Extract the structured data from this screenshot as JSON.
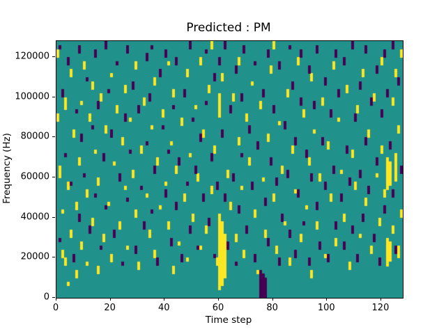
{
  "chart_data": {
    "type": "heatmap",
    "title": "Predicted : PM",
    "xlabel": "Time step",
    "ylabel": "Frequency (Hz)",
    "x_range": [
      0,
      128
    ],
    "y_range": [
      0,
      128000
    ],
    "x_ticks": [
      0,
      20,
      40,
      60,
      80,
      100,
      120
    ],
    "y_ticks": [
      0,
      20000,
      40000,
      60000,
      80000,
      100000,
      120000
    ],
    "grid": {
      "cols": 128,
      "rows": 64,
      "hz_per_row": 2000
    },
    "colors": {
      "background": "#21918c",
      "high": "#fde725",
      "low": "#440154",
      "figure": "#ffffff",
      "axis": "#000000"
    },
    "legend": "none",
    "yellow_runs": [
      [
        0,
        60,
        61
      ],
      [
        0,
        44,
        45
      ],
      [
        1,
        30,
        32
      ],
      [
        2,
        10,
        11
      ],
      [
        2,
        21,
        21
      ],
      [
        3,
        47,
        49
      ],
      [
        3,
        8,
        9
      ],
      [
        4,
        27,
        28
      ],
      [
        4,
        3,
        3
      ],
      [
        5,
        55,
        56
      ],
      [
        5,
        15,
        16
      ],
      [
        6,
        40,
        41
      ],
      [
        7,
        22,
        23
      ],
      [
        7,
        5,
        6
      ],
      [
        8,
        33,
        34
      ],
      [
        9,
        48,
        48
      ],
      [
        9,
        12,
        13
      ],
      [
        10,
        57,
        58
      ],
      [
        11,
        25,
        26
      ],
      [
        11,
        8,
        8
      ],
      [
        12,
        44,
        45
      ],
      [
        13,
        52,
        53
      ],
      [
        13,
        18,
        19
      ],
      [
        14,
        36,
        36
      ],
      [
        15,
        28,
        29
      ],
      [
        15,
        6,
        7
      ],
      [
        16,
        49,
        50
      ],
      [
        17,
        14,
        15
      ],
      [
        18,
        41,
        42
      ],
      [
        19,
        23,
        23
      ],
      [
        20,
        55,
        55
      ],
      [
        20,
        9,
        10
      ],
      [
        21,
        33,
        33
      ],
      [
        22,
        46,
        47
      ],
      [
        23,
        17,
        18
      ],
      [
        24,
        38,
        39
      ],
      [
        25,
        51,
        52
      ],
      [
        25,
        27,
        27
      ],
      [
        26,
        12,
        12
      ],
      [
        27,
        44,
        44
      ],
      [
        28,
        30,
        31
      ],
      [
        29,
        57,
        58
      ],
      [
        29,
        20,
        21
      ],
      [
        30,
        7,
        8
      ],
      [
        31,
        36,
        37
      ],
      [
        32,
        48,
        49
      ],
      [
        33,
        25,
        25
      ],
      [
        34,
        15,
        16
      ],
      [
        35,
        42,
        42
      ],
      [
        36,
        53,
        54
      ],
      [
        36,
        10,
        11
      ],
      [
        37,
        33,
        34
      ],
      [
        38,
        22,
        22
      ],
      [
        39,
        45,
        46
      ],
      [
        40,
        28,
        28
      ],
      [
        41,
        58,
        58
      ],
      [
        41,
        17,
        18
      ],
      [
        42,
        38,
        38
      ],
      [
        43,
        50,
        51
      ],
      [
        43,
        6,
        7
      ],
      [
        44,
        31,
        32
      ],
      [
        45,
        13,
        13
      ],
      [
        46,
        43,
        44
      ],
      [
        47,
        24,
        25
      ],
      [
        48,
        55,
        56
      ],
      [
        48,
        9,
        9
      ],
      [
        49,
        35,
        35
      ],
      [
        50,
        19,
        20
      ],
      [
        51,
        47,
        47
      ],
      [
        52,
        29,
        30
      ],
      [
        53,
        58,
        59
      ],
      [
        53,
        12,
        12
      ],
      [
        54,
        40,
        41
      ],
      [
        55,
        16,
        17
      ],
      [
        56,
        51,
        52
      ],
      [
        57,
        62,
        63
      ],
      [
        57,
        26,
        27
      ],
      [
        58,
        36,
        37
      ],
      [
        59,
        8,
        9
      ],
      [
        60,
        2,
        20
      ],
      [
        60,
        45,
        50
      ],
      [
        61,
        3,
        18
      ],
      [
        61,
        54,
        55
      ],
      [
        62,
        5,
        15
      ],
      [
        63,
        30,
        31
      ],
      [
        64,
        22,
        23
      ],
      [
        65,
        49,
        50
      ],
      [
        66,
        14,
        15
      ],
      [
        67,
        58,
        59
      ],
      [
        67,
        38,
        39
      ],
      [
        68,
        27,
        27
      ],
      [
        69,
        10,
        11
      ],
      [
        70,
        44,
        45
      ],
      [
        71,
        33,
        34
      ],
      [
        72,
        53,
        53
      ],
      [
        73,
        20,
        21
      ],
      [
        74,
        6,
        6
      ],
      [
        75,
        47,
        48
      ],
      [
        76,
        29,
        29
      ],
      [
        77,
        15,
        16
      ],
      [
        78,
        39,
        40
      ],
      [
        79,
        56,
        57
      ],
      [
        80,
        62,
        63
      ],
      [
        80,
        24,
        25
      ],
      [
        81,
        11,
        12
      ],
      [
        82,
        43,
        43
      ],
      [
        83,
        31,
        32
      ],
      [
        84,
        18,
        18
      ],
      [
        85,
        50,
        51
      ],
      [
        86,
        8,
        9
      ],
      [
        87,
        36,
        37
      ],
      [
        88,
        26,
        26
      ],
      [
        89,
        58,
        59
      ],
      [
        90,
        14,
        15
      ],
      [
        91,
        45,
        46
      ],
      [
        92,
        22,
        22
      ],
      [
        93,
        33,
        34
      ],
      [
        94,
        54,
        55
      ],
      [
        94,
        5,
        6
      ],
      [
        95,
        41,
        41
      ],
      [
        96,
        17,
        18
      ],
      [
        97,
        29,
        30
      ],
      [
        98,
        48,
        49
      ],
      [
        99,
        10,
        10
      ],
      [
        100,
        37,
        38
      ],
      [
        101,
        24,
        25
      ],
      [
        102,
        57,
        58
      ],
      [
        103,
        13,
        14
      ],
      [
        104,
        44,
        44
      ],
      [
        105,
        31,
        31
      ],
      [
        106,
        19,
        20
      ],
      [
        107,
        51,
        52
      ],
      [
        108,
        7,
        8
      ],
      [
        109,
        35,
        36
      ],
      [
        110,
        27,
        28
      ],
      [
        111,
        46,
        47
      ],
      [
        112,
        15,
        15
      ],
      [
        113,
        55,
        56
      ],
      [
        114,
        23,
        24
      ],
      [
        115,
        40,
        41
      ],
      [
        116,
        11,
        12
      ],
      [
        117,
        49,
        50
      ],
      [
        118,
        30,
        30
      ],
      [
        119,
        18,
        19
      ],
      [
        120,
        58,
        59
      ],
      [
        120,
        36,
        37
      ],
      [
        121,
        25,
        26
      ],
      [
        122,
        8,
        14
      ],
      [
        122,
        27,
        34
      ],
      [
        123,
        9,
        13
      ],
      [
        123,
        28,
        33
      ],
      [
        124,
        48,
        49
      ],
      [
        124,
        16,
        17
      ],
      [
        125,
        29,
        35
      ],
      [
        125,
        55,
        56
      ],
      [
        126,
        10,
        12
      ],
      [
        126,
        41,
        42
      ],
      [
        127,
        20,
        21
      ],
      [
        127,
        60,
        61
      ]
    ],
    "purple_runs": [
      [
        1,
        62,
        62
      ],
      [
        1,
        14,
        14
      ],
      [
        2,
        50,
        51
      ],
      [
        3,
        35,
        35
      ],
      [
        4,
        58,
        59
      ],
      [
        5,
        28,
        28
      ],
      [
        6,
        9,
        10
      ],
      [
        7,
        46,
        46
      ],
      [
        8,
        61,
        62
      ],
      [
        8,
        19,
        20
      ],
      [
        9,
        39,
        40
      ],
      [
        10,
        30,
        30
      ],
      [
        11,
        54,
        54
      ],
      [
        12,
        16,
        17
      ],
      [
        13,
        42,
        42
      ],
      [
        14,
        60,
        61
      ],
      [
        14,
        25,
        25
      ],
      [
        15,
        47,
        48
      ],
      [
        16,
        12,
        12
      ],
      [
        17,
        34,
        35
      ],
      [
        18,
        62,
        63
      ],
      [
        18,
        22,
        22
      ],
      [
        19,
        51,
        51
      ],
      [
        20,
        40,
        41
      ],
      [
        21,
        15,
        16
      ],
      [
        22,
        58,
        58
      ],
      [
        23,
        29,
        30
      ],
      [
        24,
        8,
        8
      ],
      [
        25,
        44,
        45
      ],
      [
        26,
        61,
        62
      ],
      [
        26,
        24,
        24
      ],
      [
        27,
        36,
        36
      ],
      [
        28,
        52,
        53
      ],
      [
        29,
        11,
        12
      ],
      [
        30,
        46,
        47
      ],
      [
        31,
        27,
        27
      ],
      [
        32,
        17,
        18
      ],
      [
        33,
        59,
        60
      ],
      [
        33,
        38,
        38
      ],
      [
        34,
        49,
        50
      ],
      [
        35,
        62,
        62
      ],
      [
        35,
        21,
        21
      ],
      [
        36,
        31,
        32
      ],
      [
        37,
        8,
        9
      ],
      [
        38,
        55,
        56
      ],
      [
        39,
        42,
        42
      ],
      [
        40,
        60,
        61
      ],
      [
        40,
        25,
        26
      ],
      [
        41,
        36,
        36
      ],
      [
        42,
        13,
        14
      ],
      [
        43,
        47,
        47
      ],
      [
        44,
        58,
        59
      ],
      [
        44,
        22,
        23
      ],
      [
        45,
        33,
        34
      ],
      [
        46,
        9,
        10
      ],
      [
        47,
        50,
        51
      ],
      [
        48,
        28,
        28
      ],
      [
        49,
        62,
        63
      ],
      [
        49,
        16,
        17
      ],
      [
        50,
        44,
        44
      ],
      [
        51,
        31,
        32
      ],
      [
        52,
        12,
        12
      ],
      [
        53,
        39,
        40
      ],
      [
        54,
        24,
        25
      ],
      [
        55,
        61,
        61
      ],
      [
        55,
        48,
        48
      ],
      [
        56,
        18,
        19
      ],
      [
        57,
        34,
        35
      ],
      [
        58,
        54,
        55
      ],
      [
        58,
        10,
        10
      ],
      [
        59,
        27,
        28
      ],
      [
        60,
        58,
        59
      ],
      [
        61,
        40,
        41
      ],
      [
        62,
        62,
        63
      ],
      [
        62,
        24,
        25
      ],
      [
        63,
        12,
        13
      ],
      [
        64,
        46,
        47
      ],
      [
        65,
        29,
        30
      ],
      [
        66,
        56,
        57
      ],
      [
        66,
        8,
        8
      ],
      [
        67,
        21,
        22
      ],
      [
        68,
        49,
        50
      ],
      [
        68,
        35,
        35
      ],
      [
        69,
        61,
        62
      ],
      [
        70,
        16,
        17
      ],
      [
        71,
        41,
        42
      ],
      [
        72,
        27,
        28
      ],
      [
        73,
        58,
        58
      ],
      [
        73,
        9,
        10
      ],
      [
        74,
        37,
        38
      ],
      [
        75,
        0,
        6
      ],
      [
        76,
        0,
        5
      ],
      [
        76,
        50,
        51
      ],
      [
        77,
        0,
        4
      ],
      [
        77,
        23,
        24
      ],
      [
        78,
        13,
        14
      ],
      [
        78,
        60,
        61
      ],
      [
        79,
        33,
        34
      ],
      [
        80,
        46,
        47
      ],
      [
        81,
        28,
        29
      ],
      [
        82,
        8,
        9
      ],
      [
        82,
        57,
        58
      ],
      [
        83,
        19,
        20
      ],
      [
        84,
        42,
        43
      ],
      [
        85,
        30,
        31
      ],
      [
        86,
        62,
        62
      ],
      [
        86,
        15,
        16
      ],
      [
        87,
        52,
        53
      ],
      [
        88,
        10,
        11
      ],
      [
        88,
        38,
        39
      ],
      [
        89,
        25,
        26
      ],
      [
        90,
        48,
        49
      ],
      [
        90,
        60,
        61
      ],
      [
        91,
        18,
        18
      ],
      [
        92,
        35,
        36
      ],
      [
        93,
        56,
        57
      ],
      [
        93,
        8,
        9
      ],
      [
        94,
        29,
        30
      ],
      [
        95,
        47,
        48
      ],
      [
        96,
        61,
        62
      ],
      [
        96,
        22,
        23
      ],
      [
        97,
        12,
        13
      ],
      [
        98,
        38,
        39
      ],
      [
        99,
        53,
        54
      ],
      [
        99,
        27,
        28
      ],
      [
        100,
        9,
        10
      ],
      [
        101,
        45,
        46
      ],
      [
        102,
        31,
        32
      ],
      [
        103,
        60,
        61
      ],
      [
        103,
        17,
        18
      ],
      [
        104,
        50,
        51
      ],
      [
        105,
        24,
        25
      ],
      [
        106,
        58,
        59
      ],
      [
        106,
        12,
        13
      ],
      [
        107,
        36,
        37
      ],
      [
        108,
        28,
        29
      ],
      [
        109,
        62,
        63
      ],
      [
        109,
        16,
        17
      ],
      [
        110,
        44,
        45
      ],
      [
        111,
        9,
        10
      ],
      [
        112,
        52,
        53
      ],
      [
        112,
        30,
        31
      ],
      [
        113,
        19,
        20
      ],
      [
        114,
        61,
        62
      ],
      [
        114,
        38,
        39
      ],
      [
        115,
        26,
        27
      ],
      [
        116,
        48,
        49
      ],
      [
        117,
        14,
        15
      ],
      [
        118,
        56,
        57
      ],
      [
        118,
        33,
        34
      ],
      [
        119,
        8,
        9
      ],
      [
        120,
        45,
        46
      ],
      [
        121,
        60,
        61
      ],
      [
        121,
        21,
        22
      ],
      [
        122,
        50,
        51
      ],
      [
        123,
        37,
        38
      ],
      [
        124,
        62,
        63
      ],
      [
        124,
        25,
        26
      ],
      [
        125,
        11,
        12
      ],
      [
        126,
        53,
        54
      ],
      [
        127,
        31,
        32
      ]
    ]
  }
}
